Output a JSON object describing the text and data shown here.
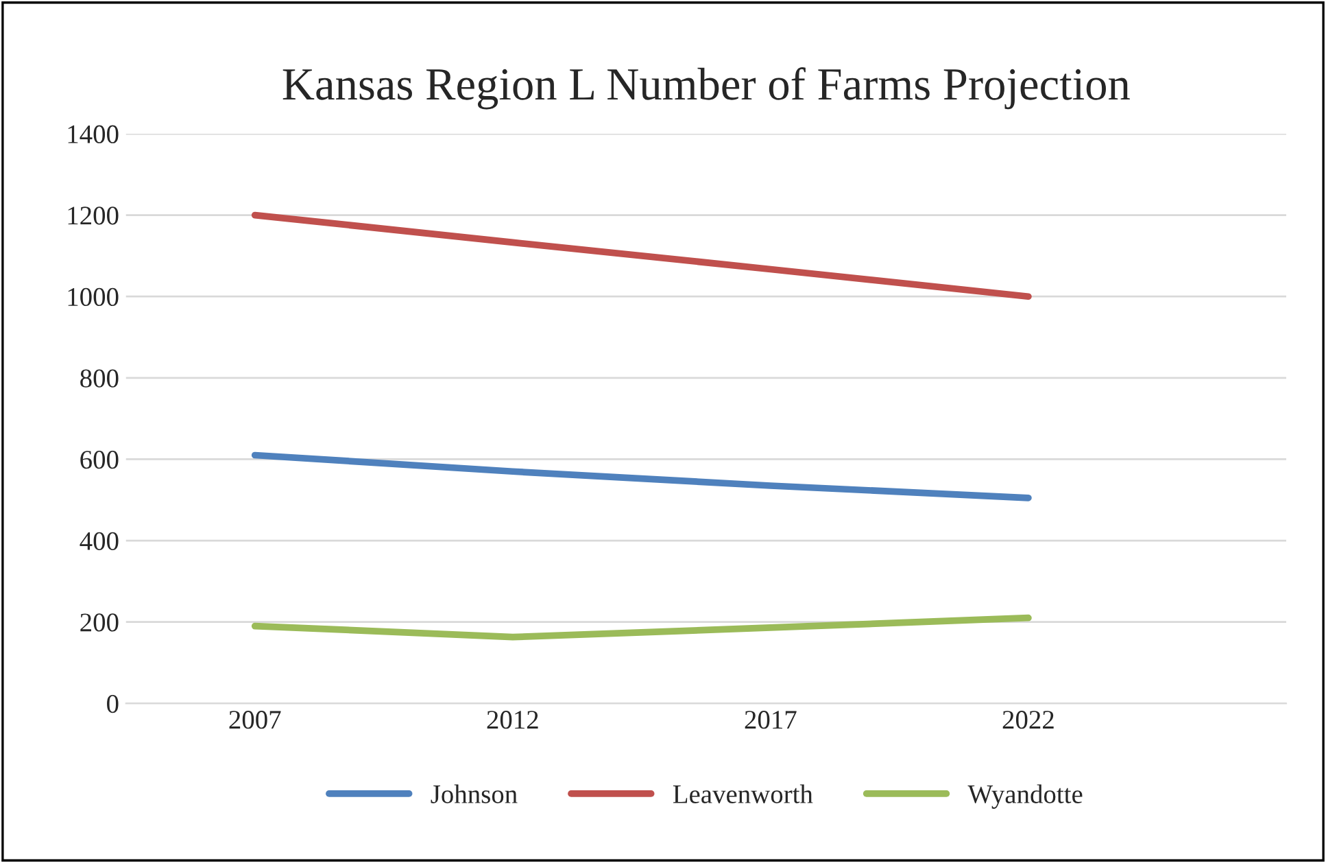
{
  "chart_data": {
    "type": "line",
    "title": "Kansas Region L Number of Farms Projection",
    "categories": [
      "2007",
      "2012",
      "2017",
      "2022"
    ],
    "series": [
      {
        "name": "Johnson",
        "color": "#4f81bd",
        "values": [
          610,
          570,
          535,
          505
        ]
      },
      {
        "name": "Leavenworth",
        "color": "#c0504d",
        "values": [
          1200,
          1133,
          1067,
          1000
        ]
      },
      {
        "name": "Wyandotte",
        "color": "#9bbb59",
        "values": [
          190,
          163,
          186,
          210
        ]
      }
    ],
    "ylim": [
      0,
      1400
    ],
    "yticks": [
      0,
      200,
      400,
      600,
      800,
      1000,
      1200,
      1400
    ],
    "grid": "y",
    "legend": "bottom",
    "marker": "none",
    "line_style": "solid"
  }
}
